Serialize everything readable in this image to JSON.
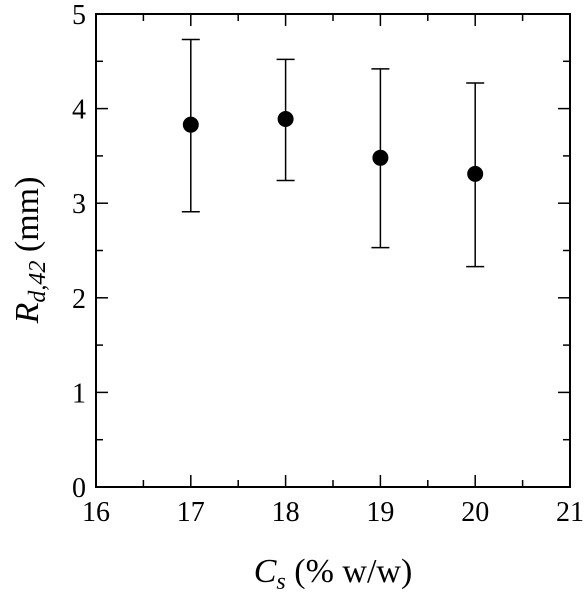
{
  "chart_data": {
    "type": "scatter",
    "title": "",
    "x": [
      17,
      18,
      19,
      20
    ],
    "y": [
      3.83,
      3.89,
      3.48,
      3.31
    ],
    "y_err_upper": [
      4.73,
      4.52,
      4.42,
      4.27
    ],
    "y_err_lower": [
      2.91,
      3.24,
      2.53,
      2.33
    ],
    "xlim": [
      16,
      21
    ],
    "ylim": [
      0,
      5
    ],
    "x_ticks": [
      "16",
      "17",
      "18",
      "19",
      "20",
      "21"
    ],
    "y_ticks": [
      "0",
      "1",
      "2",
      "3",
      "4",
      "5"
    ],
    "xlabel": {
      "main": "C",
      "sub": "s",
      "rest": " (% w/w)"
    },
    "ylabel": {
      "main": "R",
      "sub": "d,42",
      "rest": " (mm)"
    },
    "grid": false,
    "legend": "none",
    "marker_color": "#000000"
  }
}
